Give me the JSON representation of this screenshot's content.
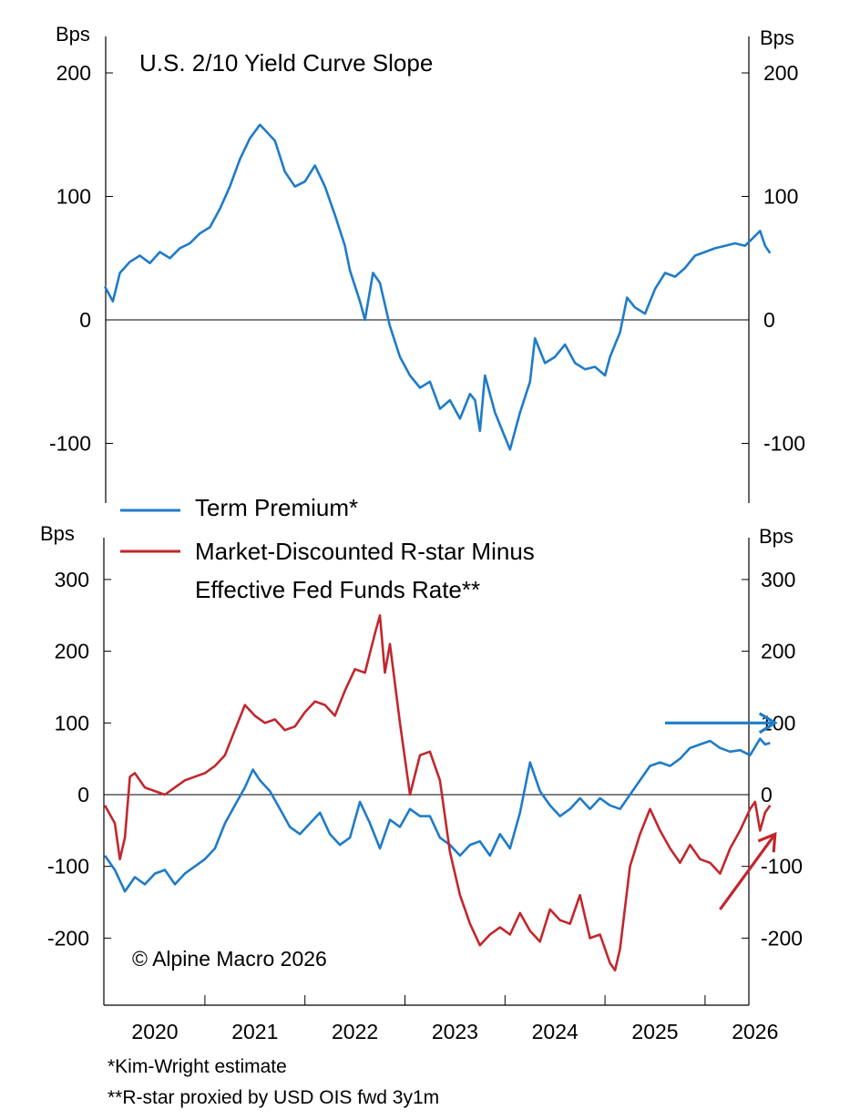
{
  "chart_data": [
    {
      "type": "line",
      "title": "U.S. 2/10 Yield Curve Slope",
      "ylabel_left": "Bps",
      "ylabel_right": "Bps",
      "ylim": [
        -140,
        230
      ],
      "yticks": [
        200,
        100,
        0,
        -100
      ],
      "ytick_labels": [
        "200",
        "100",
        "0",
        "-100"
      ],
      "series": [
        {
          "name": "",
          "color": "#1f7bc8",
          "points": [
            [
              2019.5,
              27
            ],
            [
              2019.58,
              15
            ],
            [
              2019.65,
              38
            ],
            [
              2019.75,
              47
            ],
            [
              2019.85,
              52
            ],
            [
              2019.95,
              46
            ],
            [
              2020.05,
              55
            ],
            [
              2020.15,
              50
            ],
            [
              2020.25,
              58
            ],
            [
              2020.35,
              62
            ],
            [
              2020.45,
              70
            ],
            [
              2020.55,
              75
            ],
            [
              2020.65,
              90
            ],
            [
              2020.75,
              108
            ],
            [
              2020.85,
              130
            ],
            [
              2020.95,
              147
            ],
            [
              2021.05,
              158
            ],
            [
              2021.12,
              152
            ],
            [
              2021.2,
              145
            ],
            [
              2021.3,
              120
            ],
            [
              2021.4,
              108
            ],
            [
              2021.5,
              112
            ],
            [
              2021.6,
              125
            ],
            [
              2021.7,
              108
            ],
            [
              2021.8,
              85
            ],
            [
              2021.9,
              60
            ],
            [
              2021.95,
              40
            ],
            [
              2022.05,
              15
            ],
            [
              2022.1,
              0
            ],
            [
              2022.18,
              38
            ],
            [
              2022.25,
              30
            ],
            [
              2022.35,
              -5
            ],
            [
              2022.45,
              -30
            ],
            [
              2022.55,
              -45
            ],
            [
              2022.65,
              -55
            ],
            [
              2022.75,
              -50
            ],
            [
              2022.85,
              -72
            ],
            [
              2022.95,
              -65
            ],
            [
              2023.05,
              -80
            ],
            [
              2023.15,
              -60
            ],
            [
              2023.2,
              -65
            ],
            [
              2023.25,
              -90
            ],
            [
              2023.3,
              -45
            ],
            [
              2023.4,
              -75
            ],
            [
              2023.5,
              -95
            ],
            [
              2023.55,
              -105
            ],
            [
              2023.65,
              -75
            ],
            [
              2023.75,
              -50
            ],
            [
              2023.8,
              -15
            ],
            [
              2023.9,
              -35
            ],
            [
              2024.0,
              -30
            ],
            [
              2024.1,
              -20
            ],
            [
              2024.2,
              -35
            ],
            [
              2024.3,
              -40
            ],
            [
              2024.4,
              -38
            ],
            [
              2024.5,
              -45
            ],
            [
              2024.55,
              -30
            ],
            [
              2024.65,
              -10
            ],
            [
              2024.72,
              18
            ],
            [
              2024.8,
              10
            ],
            [
              2024.9,
              5
            ],
            [
              2025.0,
              25
            ],
            [
              2025.1,
              38
            ],
            [
              2025.2,
              35
            ],
            [
              2025.3,
              42
            ],
            [
              2025.4,
              52
            ],
            [
              2025.5,
              55
            ],
            [
              2025.6,
              58
            ],
            [
              2025.7,
              60
            ],
            [
              2025.8,
              62
            ],
            [
              2025.9,
              60
            ],
            [
              2026.0,
              68
            ],
            [
              2026.05,
              72
            ],
            [
              2026.1,
              60
            ],
            [
              2026.15,
              54
            ]
          ]
        }
      ],
      "zero_line": true
    },
    {
      "type": "line",
      "ylabel_left": "Bps",
      "ylabel_right": "Bps",
      "ylim": [
        -290,
        365
      ],
      "yticks": [
        300,
        200,
        100,
        0,
        -100,
        -200
      ],
      "ytick_labels": [
        "300",
        "200",
        "100",
        "0",
        "-100",
        "-200"
      ],
      "xticks": [
        2020,
        2021,
        2022,
        2023,
        2024,
        2025,
        2026
      ],
      "xlim": [
        2019.5,
        2026.3
      ],
      "series": [
        {
          "name": "Term Premium*",
          "color": "#1f7bc8",
          "points": [
            [
              2019.5,
              -85
            ],
            [
              2019.6,
              -105
            ],
            [
              2019.7,
              -135
            ],
            [
              2019.8,
              -115
            ],
            [
              2019.9,
              -125
            ],
            [
              2020.0,
              -110
            ],
            [
              2020.1,
              -105
            ],
            [
              2020.2,
              -125
            ],
            [
              2020.3,
              -110
            ],
            [
              2020.4,
              -100
            ],
            [
              2020.5,
              -90
            ],
            [
              2020.6,
              -75
            ],
            [
              2020.7,
              -40
            ],
            [
              2020.8,
              -15
            ],
            [
              2020.9,
              10
            ],
            [
              2020.98,
              35
            ],
            [
              2021.05,
              20
            ],
            [
              2021.15,
              5
            ],
            [
              2021.25,
              -20
            ],
            [
              2021.35,
              -45
            ],
            [
              2021.45,
              -55
            ],
            [
              2021.55,
              -40
            ],
            [
              2021.65,
              -25
            ],
            [
              2021.75,
              -55
            ],
            [
              2021.85,
              -70
            ],
            [
              2021.95,
              -60
            ],
            [
              2022.05,
              -10
            ],
            [
              2022.15,
              -40
            ],
            [
              2022.25,
              -75
            ],
            [
              2022.35,
              -35
            ],
            [
              2022.45,
              -45
            ],
            [
              2022.55,
              -20
            ],
            [
              2022.65,
              -30
            ],
            [
              2022.75,
              -30
            ],
            [
              2022.85,
              -60
            ],
            [
              2022.95,
              -70
            ],
            [
              2023.05,
              -85
            ],
            [
              2023.15,
              -70
            ],
            [
              2023.25,
              -65
            ],
            [
              2023.35,
              -85
            ],
            [
              2023.45,
              -55
            ],
            [
              2023.55,
              -75
            ],
            [
              2023.65,
              -25
            ],
            [
              2023.75,
              45
            ],
            [
              2023.85,
              5
            ],
            [
              2023.95,
              -15
            ],
            [
              2024.05,
              -30
            ],
            [
              2024.15,
              -20
            ],
            [
              2024.25,
              -5
            ],
            [
              2024.35,
              -20
            ],
            [
              2024.45,
              -5
            ],
            [
              2024.55,
              -15
            ],
            [
              2024.65,
              -20
            ],
            [
              2024.75,
              0
            ],
            [
              2024.85,
              20
            ],
            [
              2024.95,
              40
            ],
            [
              2025.05,
              45
            ],
            [
              2025.15,
              40
            ],
            [
              2025.25,
              50
            ],
            [
              2025.35,
              65
            ],
            [
              2025.45,
              70
            ],
            [
              2025.55,
              75
            ],
            [
              2025.65,
              65
            ],
            [
              2025.75,
              60
            ],
            [
              2025.85,
              62
            ],
            [
              2025.95,
              55
            ],
            [
              2026.05,
              78
            ],
            [
              2026.1,
              70
            ],
            [
              2026.15,
              72
            ]
          ]
        },
        {
          "name": "Market-Discounted R-star Minus Effective Fed Funds Rate**",
          "color": "#c1272d",
          "points": [
            [
              2019.5,
              -15
            ],
            [
              2019.6,
              -40
            ],
            [
              2019.65,
              -90
            ],
            [
              2019.7,
              -60
            ],
            [
              2019.75,
              25
            ],
            [
              2019.8,
              30
            ],
            [
              2019.9,
              10
            ],
            [
              2020.0,
              5
            ],
            [
              2020.1,
              0
            ],
            [
              2020.2,
              10
            ],
            [
              2020.3,
              20
            ],
            [
              2020.4,
              25
            ],
            [
              2020.5,
              30
            ],
            [
              2020.6,
              40
            ],
            [
              2020.7,
              55
            ],
            [
              2020.8,
              90
            ],
            [
              2020.9,
              125
            ],
            [
              2021.0,
              110
            ],
            [
              2021.1,
              100
            ],
            [
              2021.2,
              105
            ],
            [
              2021.3,
              90
            ],
            [
              2021.4,
              95
            ],
            [
              2021.5,
              115
            ],
            [
              2021.6,
              130
            ],
            [
              2021.7,
              125
            ],
            [
              2021.8,
              110
            ],
            [
              2021.9,
              145
            ],
            [
              2022.0,
              175
            ],
            [
              2022.1,
              170
            ],
            [
              2022.2,
              225
            ],
            [
              2022.25,
              250
            ],
            [
              2022.3,
              170
            ],
            [
              2022.35,
              210
            ],
            [
              2022.45,
              100
            ],
            [
              2022.55,
              0
            ],
            [
              2022.65,
              55
            ],
            [
              2022.75,
              60
            ],
            [
              2022.85,
              20
            ],
            [
              2022.95,
              -80
            ],
            [
              2023.05,
              -140
            ],
            [
              2023.15,
              -180
            ],
            [
              2023.25,
              -210
            ],
            [
              2023.35,
              -195
            ],
            [
              2023.45,
              -185
            ],
            [
              2023.55,
              -195
            ],
            [
              2023.65,
              -165
            ],
            [
              2023.75,
              -190
            ],
            [
              2023.85,
              -205
            ],
            [
              2023.95,
              -160
            ],
            [
              2024.05,
              -175
            ],
            [
              2024.15,
              -180
            ],
            [
              2024.25,
              -140
            ],
            [
              2024.35,
              -200
            ],
            [
              2024.45,
              -195
            ],
            [
              2024.55,
              -235
            ],
            [
              2024.6,
              -245
            ],
            [
              2024.65,
              -215
            ],
            [
              2024.75,
              -100
            ],
            [
              2024.85,
              -55
            ],
            [
              2024.95,
              -20
            ],
            [
              2025.05,
              -50
            ],
            [
              2025.15,
              -75
            ],
            [
              2025.25,
              -95
            ],
            [
              2025.35,
              -70
            ],
            [
              2025.45,
              -90
            ],
            [
              2025.55,
              -95
            ],
            [
              2025.65,
              -110
            ],
            [
              2025.75,
              -75
            ],
            [
              2025.85,
              -50
            ],
            [
              2025.95,
              -20
            ],
            [
              2026.0,
              -10
            ],
            [
              2026.05,
              -50
            ],
            [
              2026.1,
              -25
            ],
            [
              2026.15,
              -15
            ]
          ]
        }
      ],
      "annotations": [
        {
          "type": "arrow",
          "color": "#1f7bc8",
          "from": [
            2025.1,
            100
          ],
          "to": [
            2026.2,
            100
          ]
        },
        {
          "type": "arrow",
          "color": "#c1272d",
          "from": [
            2025.65,
            -160
          ],
          "to": [
            2026.2,
            -55
          ]
        }
      ],
      "copyright": "© Alpine Macro 2026",
      "legend_position": "top-left",
      "zero_line": true
    }
  ],
  "footnotes": [
    "*Kim-Wright estimate",
    "**R-star proxied by USD OIS fwd 3y1m"
  ]
}
